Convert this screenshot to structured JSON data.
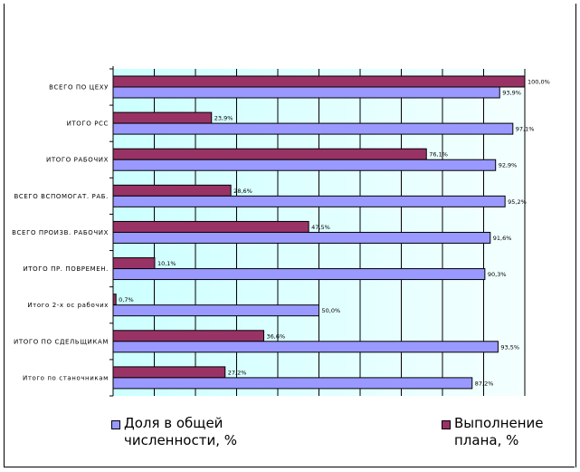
{
  "chart_data": {
    "type": "bar",
    "orientation": "horizontal",
    "title": "",
    "xlabel": "",
    "ylabel": "",
    "xlim": [
      0,
      100
    ],
    "grid": true,
    "legend_position": "bottom",
    "categories": [
      "ВСЕГО ПО ЦЕХУ",
      "ИТОГО РСС",
      "ИТОГО РАБОЧИХ",
      "ВСЕГО ВСПОМОГАТ. РАБ.",
      "ВСЕГО ПРОИЗВ. РАБОЧИХ",
      "ИТОГО ПР. ПОВРЕМЕН.",
      "Итого 2-х ос рабочих",
      "ИТОГО ПО СДЕЛЬЩИКАМ",
      "Итого по станочникам"
    ],
    "series": [
      {
        "name": "Выполнение плана, %",
        "color": "#993366",
        "values": [
          100.0,
          23.9,
          76.1,
          28.6,
          47.5,
          10.1,
          0.7,
          36.6,
          27.2
        ],
        "labels": [
          "100,0%",
          "23,9%",
          "76,1%",
          "28,6%",
          "47,5%",
          "10,1%",
          "0,7%",
          "36,6%",
          "27,2%"
        ]
      },
      {
        "name": "Доля в общей численности, %",
        "color": "#9999ff",
        "values": [
          93.9,
          97.1,
          92.9,
          95.2,
          91.6,
          90.3,
          50.0,
          93.5,
          87.2
        ],
        "labels": [
          "93,9%",
          "97,1%",
          "92,9%",
          "95,2%",
          "91,6%",
          "90,3%",
          "50,0%",
          "93,5%",
          "87,2%"
        ]
      }
    ]
  },
  "legend": {
    "share_line1": "Доля в общей",
    "share_line2": "численности, %",
    "plan_line1": "Выполнение",
    "plan_line2": "плана, %"
  }
}
